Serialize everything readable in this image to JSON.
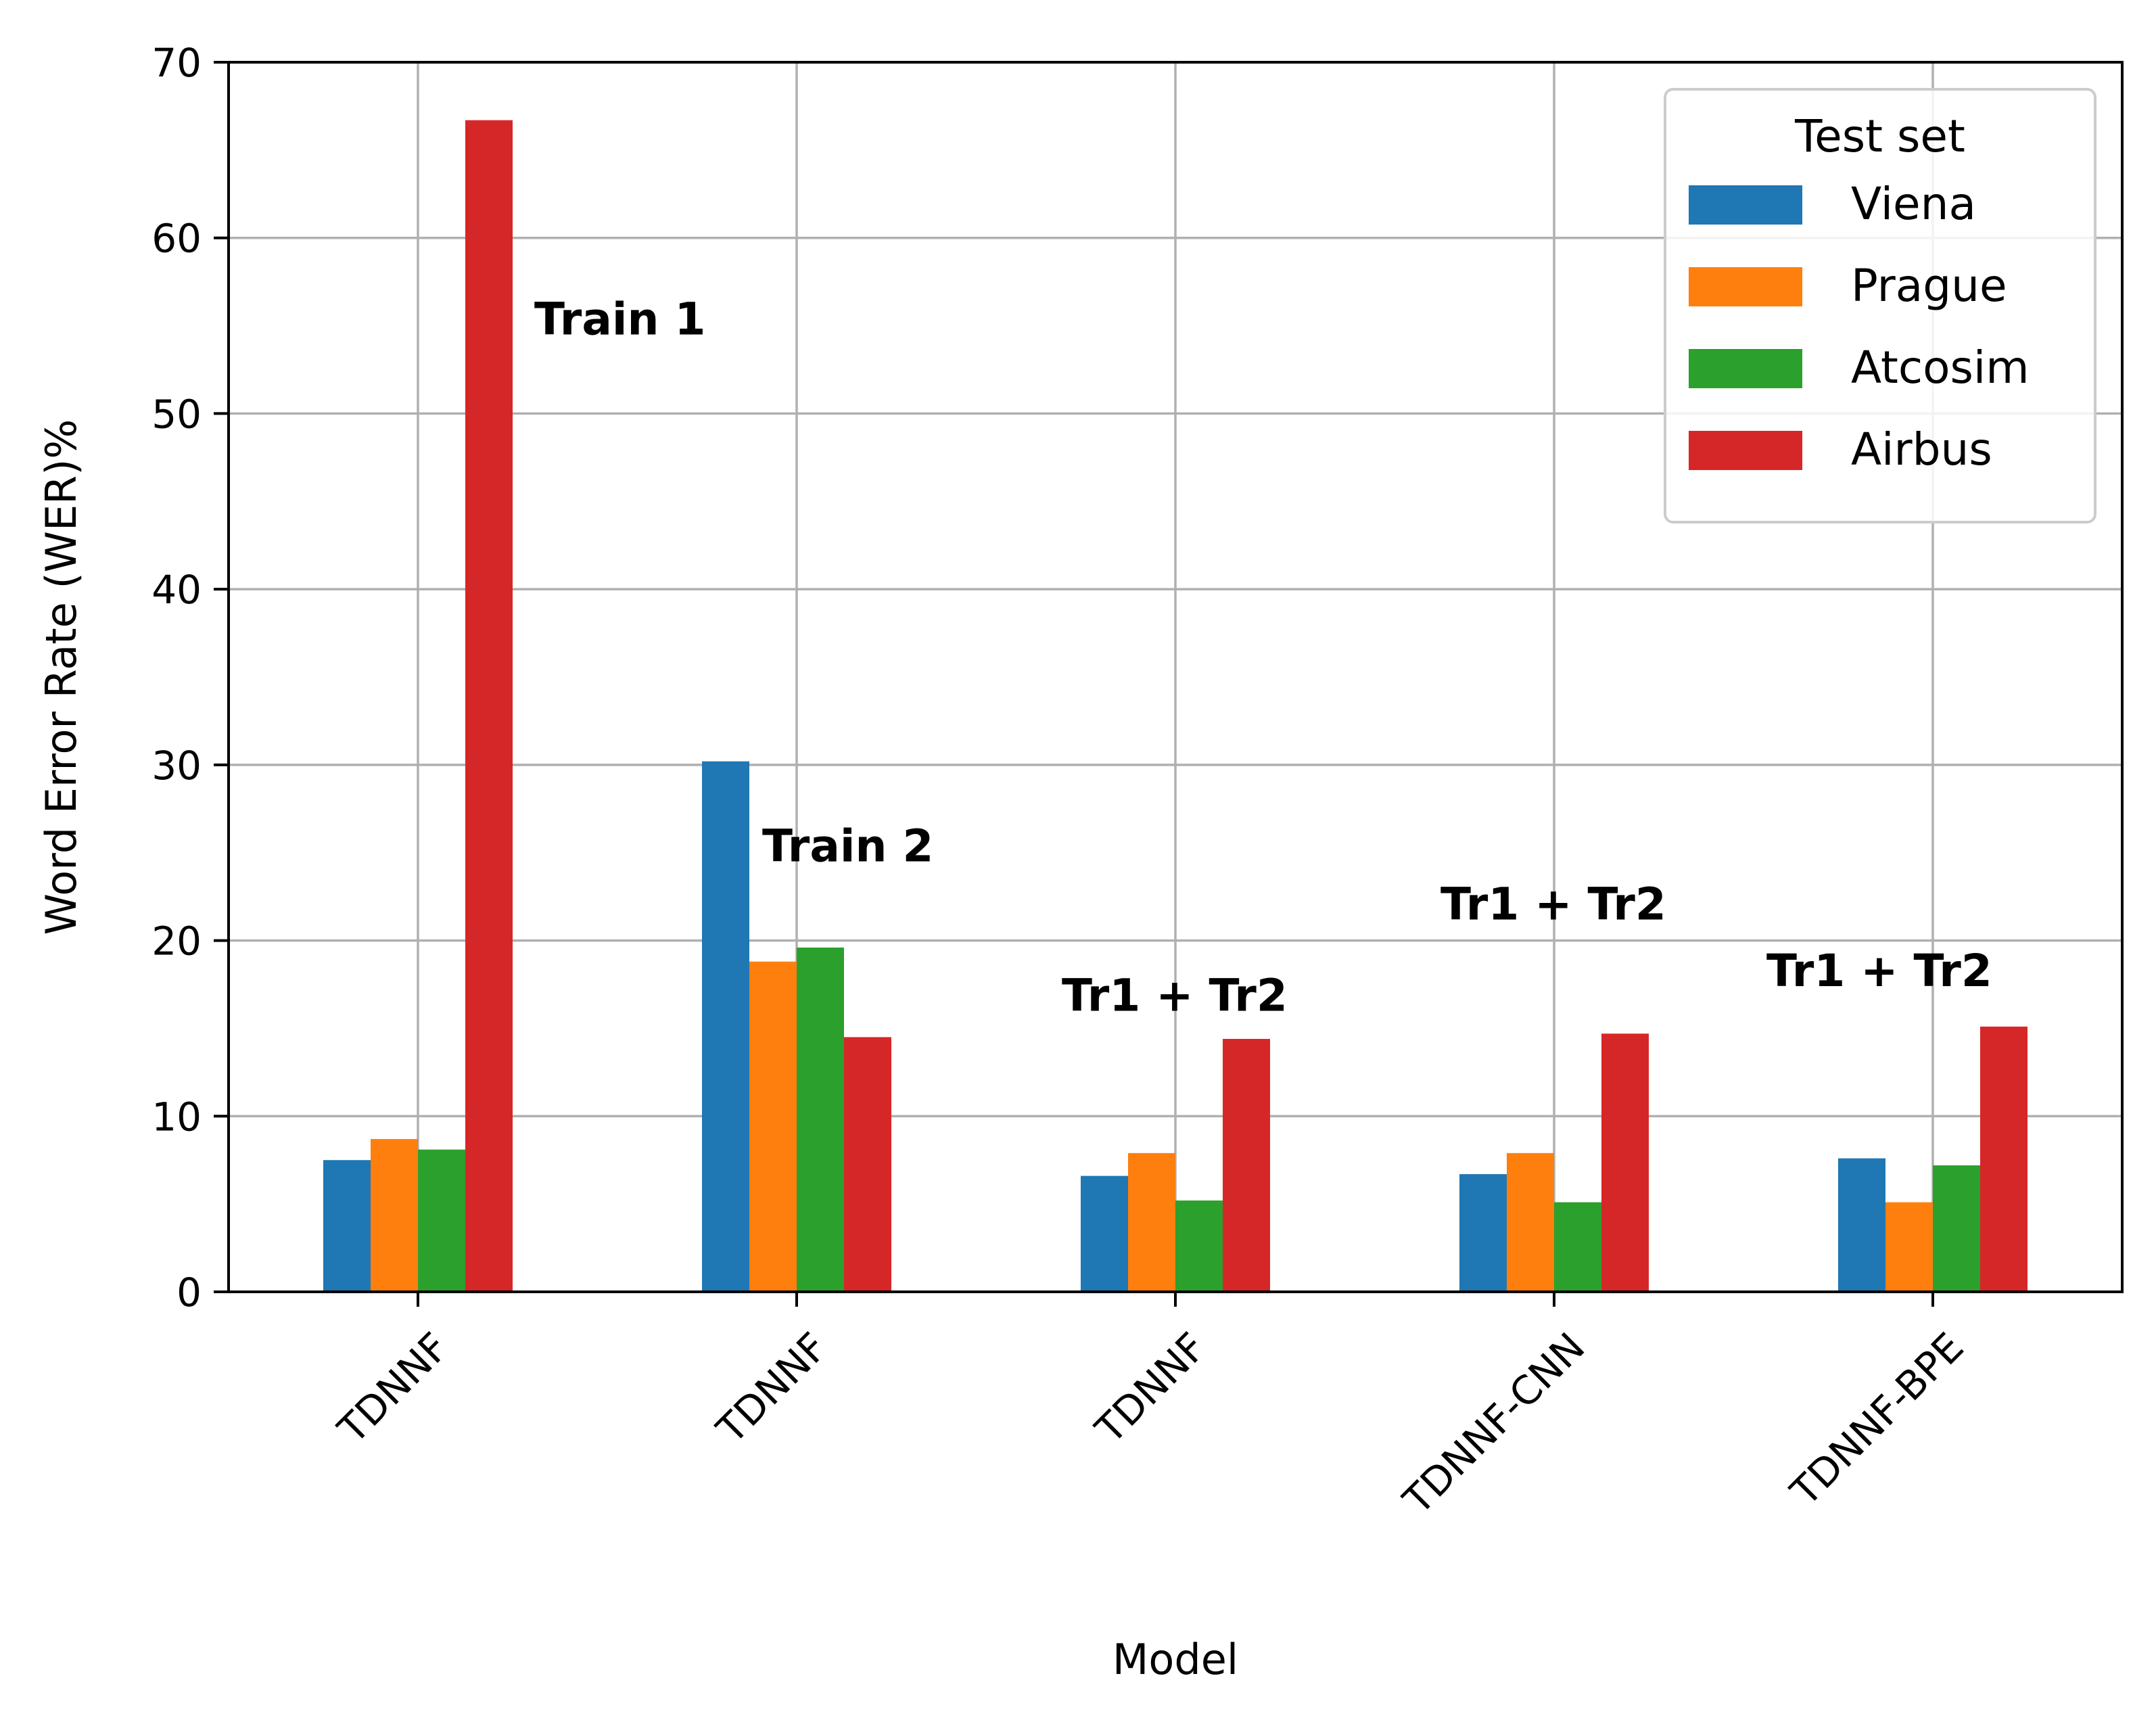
{
  "chart_data": {
    "type": "bar",
    "categories": [
      "TDNNF",
      "TDNNF",
      "TDNNF",
      "TDNNF-CNN",
      "TDNNF-BPE"
    ],
    "series": [
      {
        "name": "Viena",
        "color": "#1f77b4",
        "values": [
          7.5,
          30.2,
          6.6,
          6.7,
          7.6
        ]
      },
      {
        "name": "Prague",
        "color": "#ff7f0e",
        "values": [
          8.7,
          18.8,
          7.9,
          7.9,
          5.1
        ]
      },
      {
        "name": "Atcosim",
        "color": "#2ca02c",
        "values": [
          8.1,
          19.6,
          5.2,
          5.1,
          7.2
        ]
      },
      {
        "name": "Airbus",
        "color": "#d62728",
        "values": [
          66.7,
          14.5,
          14.4,
          14.7,
          15.1
        ]
      }
    ],
    "xlabel": "Model",
    "ylabel": "Word Error Rate (WER)%",
    "ylim": [
      0,
      70
    ],
    "yticks": [
      0,
      10,
      20,
      30,
      40,
      50,
      60,
      70
    ],
    "grid": true,
    "legend": {
      "title": "Test set",
      "placement": "top-right"
    },
    "annotations": [
      {
        "text": "Train 1",
        "category_index": 0,
        "y": 54.5
      },
      {
        "text": "Train 2",
        "category_index": 1,
        "y": 24.5
      },
      {
        "text": "Tr1 + Tr2",
        "category_index": 2,
        "y": 16.0
      },
      {
        "text": "Tr1 + Tr2",
        "category_index": 3,
        "y": 21.2
      },
      {
        "text": "Tr1 + Tr2",
        "category_index": 4,
        "y": 17.4
      }
    ]
  }
}
